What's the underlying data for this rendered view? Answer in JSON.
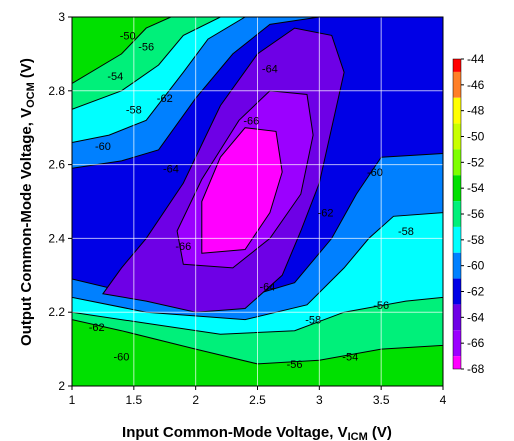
{
  "chart_data": {
    "type": "contour",
    "xlabel": "Input Common-Mode Voltage, V",
    "xlabel_sub": "ICM",
    "xlabel_unit": " (V)",
    "ylabel": "Output Common-Mode Voltage, V",
    "ylabel_sub": "OCM",
    "ylabel_unit": " (V)",
    "xlim": [
      1,
      4
    ],
    "ylim": [
      2,
      3
    ],
    "xticks": [
      "1",
      "1.5",
      "2",
      "2.5",
      "3",
      "3.5",
      "4"
    ],
    "yticks": [
      "2",
      "2.2",
      "2.4",
      "2.6",
      "2.8",
      "3"
    ],
    "grid": true,
    "colorbar": {
      "position": "right",
      "levels": [
        "-44",
        "-46",
        "-48",
        "-50",
        "-52",
        "-54",
        "-56",
        "-58",
        "-60",
        "-62",
        "-64",
        "-66",
        "-68"
      ],
      "colors": [
        "#ff0000",
        "#ff7f27",
        "#ffff00",
        "#c8ff00",
        "#7dff00",
        "#00e000",
        "#00f07a",
        "#00ffff",
        "#0080ff",
        "#0000e6",
        "#6e00e6",
        "#9b00ff",
        "#ff00ff"
      ]
    },
    "regions": [
      {
        "level": -52,
        "color": "#00e000",
        "poly": [
          [
            1,
            2
          ],
          [
            4,
            2
          ],
          [
            4,
            3
          ],
          [
            1,
            3
          ]
        ]
      },
      {
        "level": -54,
        "color": "#00f07a",
        "poly": [
          [
            1,
            2.18
          ],
          [
            1.4,
            2.15
          ],
          [
            2,
            2.1
          ],
          [
            2.5,
            2.06
          ],
          [
            3,
            2.07
          ],
          [
            3.5,
            2.1
          ],
          [
            4,
            2.11
          ],
          [
            4,
            3
          ],
          [
            1.8,
            3
          ],
          [
            1.6,
            2.97
          ],
          [
            1.4,
            2.9
          ],
          [
            1,
            2.82
          ]
        ]
      },
      {
        "level": -56,
        "color": "#00ffff",
        "poly": [
          [
            1,
            2.2
          ],
          [
            1.6,
            2.17
          ],
          [
            2.2,
            2.14
          ],
          [
            2.8,
            2.15
          ],
          [
            3.2,
            2.2
          ],
          [
            3.7,
            2.23
          ],
          [
            4,
            2.24
          ],
          [
            4,
            3
          ],
          [
            2.6,
            3
          ],
          [
            2.2,
            3
          ],
          [
            1.9,
            2.95
          ],
          [
            1.7,
            2.87
          ],
          [
            1.4,
            2.8
          ],
          [
            1,
            2.75
          ]
        ]
      },
      {
        "level": -58,
        "color": "#0080ff",
        "poly": [
          [
            1,
            2.24
          ],
          [
            1.6,
            2.2
          ],
          [
            2.4,
            2.18
          ],
          [
            2.9,
            2.22
          ],
          [
            3.2,
            2.32
          ],
          [
            3.4,
            2.4
          ],
          [
            3.6,
            2.46
          ],
          [
            4,
            2.47
          ],
          [
            4,
            3
          ],
          [
            2.8,
            3
          ],
          [
            2.4,
            3
          ],
          [
            2.1,
            2.94
          ],
          [
            1.9,
            2.85
          ],
          [
            1.6,
            2.72
          ],
          [
            1.3,
            2.68
          ],
          [
            1,
            2.66
          ]
        ]
      },
      {
        "level": -60,
        "color": "#0000e6",
        "poly": [
          [
            1,
            2.29
          ],
          [
            1.5,
            2.25
          ],
          [
            2.2,
            2.22
          ],
          [
            2.8,
            2.28
          ],
          [
            3.1,
            2.4
          ],
          [
            3.3,
            2.52
          ],
          [
            3.5,
            2.62
          ],
          [
            4,
            2.63
          ],
          [
            4,
            3
          ],
          [
            3,
            3
          ],
          [
            2.6,
            2.98
          ],
          [
            2.3,
            2.9
          ],
          [
            2,
            2.78
          ],
          [
            1.7,
            2.64
          ],
          [
            1.4,
            2.61
          ],
          [
            1,
            2.59
          ]
        ]
      },
      {
        "level": -62,
        "color": "#6e00e6",
        "poly": [
          [
            1.25,
            2.25
          ],
          [
            1.6,
            2.23
          ],
          [
            2,
            2.2
          ],
          [
            2.4,
            2.21
          ],
          [
            2.7,
            2.3
          ],
          [
            2.85,
            2.42
          ],
          [
            3,
            2.55
          ],
          [
            3.1,
            2.7
          ],
          [
            3.2,
            2.85
          ],
          [
            3.1,
            2.95
          ],
          [
            2.8,
            2.97
          ],
          [
            2.5,
            2.9
          ],
          [
            2.2,
            2.76
          ],
          [
            1.9,
            2.55
          ],
          [
            1.6,
            2.4
          ],
          [
            1.4,
            2.32
          ]
        ]
      },
      {
        "level": -64,
        "color": "#9b00ff",
        "poly": [
          [
            1.9,
            2.33
          ],
          [
            2.3,
            2.32
          ],
          [
            2.6,
            2.4
          ],
          [
            2.85,
            2.52
          ],
          [
            2.95,
            2.68
          ],
          [
            2.9,
            2.79
          ],
          [
            2.6,
            2.8
          ],
          [
            2.35,
            2.72
          ],
          [
            2.05,
            2.56
          ],
          [
            1.85,
            2.42
          ]
        ]
      },
      {
        "level": -66,
        "color": "#ff00ff",
        "poly": [
          [
            2.05,
            2.36
          ],
          [
            2.4,
            2.37
          ],
          [
            2.6,
            2.47
          ],
          [
            2.7,
            2.58
          ],
          [
            2.65,
            2.69
          ],
          [
            2.4,
            2.7
          ],
          [
            2.2,
            2.62
          ],
          [
            2.05,
            2.5
          ]
        ]
      }
    ],
    "labels": [
      {
        "text": "-50",
        "x": 1.45,
        "y": 2.95
      },
      {
        "text": "-56",
        "x": 1.6,
        "y": 2.92
      },
      {
        "text": "-54",
        "x": 1.35,
        "y": 2.84
      },
      {
        "text": "-58",
        "x": 1.5,
        "y": 2.75
      },
      {
        "text": "-60",
        "x": 1.25,
        "y": 2.65
      },
      {
        "text": "-62",
        "x": 1.75,
        "y": 2.78
      },
      {
        "text": "-64",
        "x": 2.6,
        "y": 2.86
      },
      {
        "text": "-66",
        "x": 2.45,
        "y": 2.72
      },
      {
        "text": "-64",
        "x": 1.8,
        "y": 2.59
      },
      {
        "text": "-66",
        "x": 1.9,
        "y": 2.38
      },
      {
        "text": "-62",
        "x": 3.05,
        "y": 2.47
      },
      {
        "text": "-60",
        "x": 3.45,
        "y": 2.58
      },
      {
        "text": "-58",
        "x": 3.7,
        "y": 2.42
      },
      {
        "text": "-64",
        "x": 2.58,
        "y": 2.27
      },
      {
        "text": "-62",
        "x": 1.2,
        "y": 2.16
      },
      {
        "text": "-58",
        "x": 2.95,
        "y": 2.18
      },
      {
        "text": "-56",
        "x": 3.5,
        "y": 2.22
      },
      {
        "text": "-60",
        "x": 1.4,
        "y": 2.08
      },
      {
        "text": "-56",
        "x": 2.8,
        "y": 2.06
      },
      {
        "text": "-54",
        "x": 3.25,
        "y": 2.08
      }
    ]
  }
}
